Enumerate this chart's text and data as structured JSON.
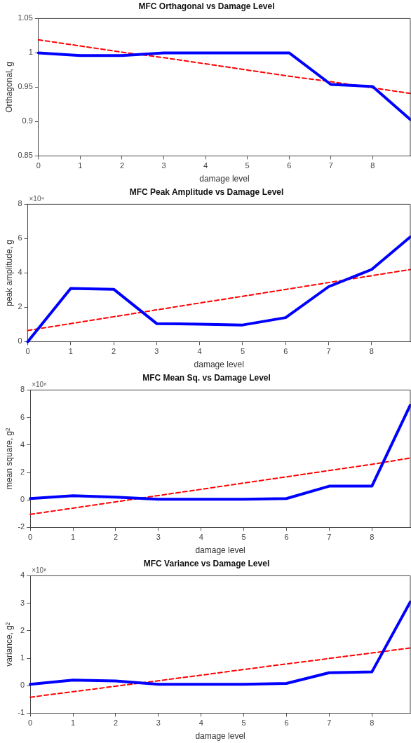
{
  "chart_data": [
    {
      "type": "line",
      "title": "MFC Orthagonal vs Damage Level",
      "xlabel": "damage level",
      "ylabel": "Orthagonal, g",
      "x": [
        0,
        1,
        2,
        3,
        4,
        5,
        6,
        7,
        8,
        8.9
      ],
      "xlim": [
        0,
        8.9
      ],
      "xticks": [
        0,
        1,
        2,
        3,
        4,
        5,
        6,
        7,
        8
      ],
      "ylim": [
        0.85,
        1.05
      ],
      "yticks": [
        0.85,
        0.9,
        0.95,
        1,
        1.05
      ],
      "grid": false,
      "legend": false,
      "marker": "none",
      "series": [
        {
          "color": "#0000ff",
          "line_style": "solid",
          "values": [
            1.0,
            0.996,
            0.996,
            1.0,
            1.0,
            1.0,
            1.0,
            0.954,
            0.951,
            0.903
          ]
        },
        {
          "type": "line",
          "color": "#ff0000",
          "line_style": "dashed",
          "values": [
            1.019,
            1.01,
            1.001,
            0.993,
            0.984,
            0.975,
            0.966,
            0.958,
            0.949,
            0.941
          ]
        }
      ]
    },
    {
      "type": "line",
      "title": "MFC Peak Amplitude vs Damage Level",
      "xlabel": "damage level",
      "ylabel": "peak amplitude, g",
      "annotations": [
        "×10⁴"
      ],
      "x": [
        0,
        1,
        2,
        3,
        4,
        5,
        6,
        7,
        8,
        8.9
      ],
      "xlim": [
        0,
        8.9
      ],
      "xticks": [
        0,
        1,
        2,
        3,
        4,
        5,
        6,
        7,
        8
      ],
      "ylim": [
        0,
        8
      ],
      "yticks": [
        0,
        2,
        4,
        6,
        8
      ],
      "grid": false,
      "legend": false,
      "marker": "none",
      "series": [
        {
          "color": "#0000ff",
          "line_style": "solid",
          "values": [
            0,
            3.1,
            3.05,
            1.05,
            1.02,
            0.97,
            1.4,
            3.2,
            4.2,
            6.1
          ]
        },
        {
          "type": "line",
          "color": "#ff0000",
          "line_style": "dashed",
          "values": [
            0.65,
            1.05,
            1.45,
            1.85,
            2.25,
            2.64,
            3.04,
            3.44,
            3.84,
            4.2
          ]
        }
      ]
    },
    {
      "type": "line",
      "title": "MFC Mean Sq. vs Damage Level",
      "xlabel": "damage level",
      "ylabel": "mean square, g²",
      "annotations": [
        "×10⁸"
      ],
      "x": [
        0,
        1,
        2,
        3,
        4,
        5,
        6,
        7,
        8,
        8.9
      ],
      "xlim": [
        0,
        8.9
      ],
      "xticks": [
        0,
        1,
        2,
        3,
        4,
        5,
        6,
        7,
        8
      ],
      "ylim": [
        -2,
        8
      ],
      "yticks": [
        -2,
        0,
        2,
        4,
        6,
        8
      ],
      "grid": false,
      "legend": false,
      "marker": "none",
      "series": [
        {
          "color": "#0000ff",
          "line_style": "solid",
          "values": [
            0.1,
            0.3,
            0.2,
            0.05,
            0.05,
            0.05,
            0.1,
            1.0,
            1.0,
            6.9
          ]
        },
        {
          "type": "line",
          "color": "#ff0000",
          "line_style": "dashed",
          "values": [
            -1.05,
            -0.6,
            -0.14,
            0.32,
            0.77,
            1.23,
            1.68,
            2.14,
            2.59,
            3.05
          ]
        }
      ]
    },
    {
      "type": "line",
      "title": "MFC Variance vs Damage Level",
      "xlabel": "damage level",
      "ylabel": "variance, g²",
      "annotations": [
        "×10⁸"
      ],
      "x": [
        0,
        1,
        2,
        3,
        4,
        5,
        6,
        7,
        8,
        8.9
      ],
      "xlim": [
        0,
        8.9
      ],
      "xticks": [
        0,
        1,
        2,
        3,
        4,
        5,
        6,
        7,
        8
      ],
      "ylim": [
        -1,
        4
      ],
      "yticks": [
        -1,
        0,
        1,
        2,
        3,
        4
      ],
      "grid": false,
      "legend": false,
      "marker": "none",
      "series": [
        {
          "color": "#0000ff",
          "line_style": "solid",
          "values": [
            0.05,
            0.2,
            0.17,
            0.05,
            0.05,
            0.05,
            0.08,
            0.47,
            0.5,
            3.05
          ]
        },
        {
          "type": "line",
          "color": "#ff0000",
          "line_style": "dashed",
          "values": [
            -0.42,
            -0.22,
            -0.02,
            0.18,
            0.38,
            0.59,
            0.79,
            0.99,
            1.19,
            1.37
          ]
        }
      ]
    }
  ]
}
